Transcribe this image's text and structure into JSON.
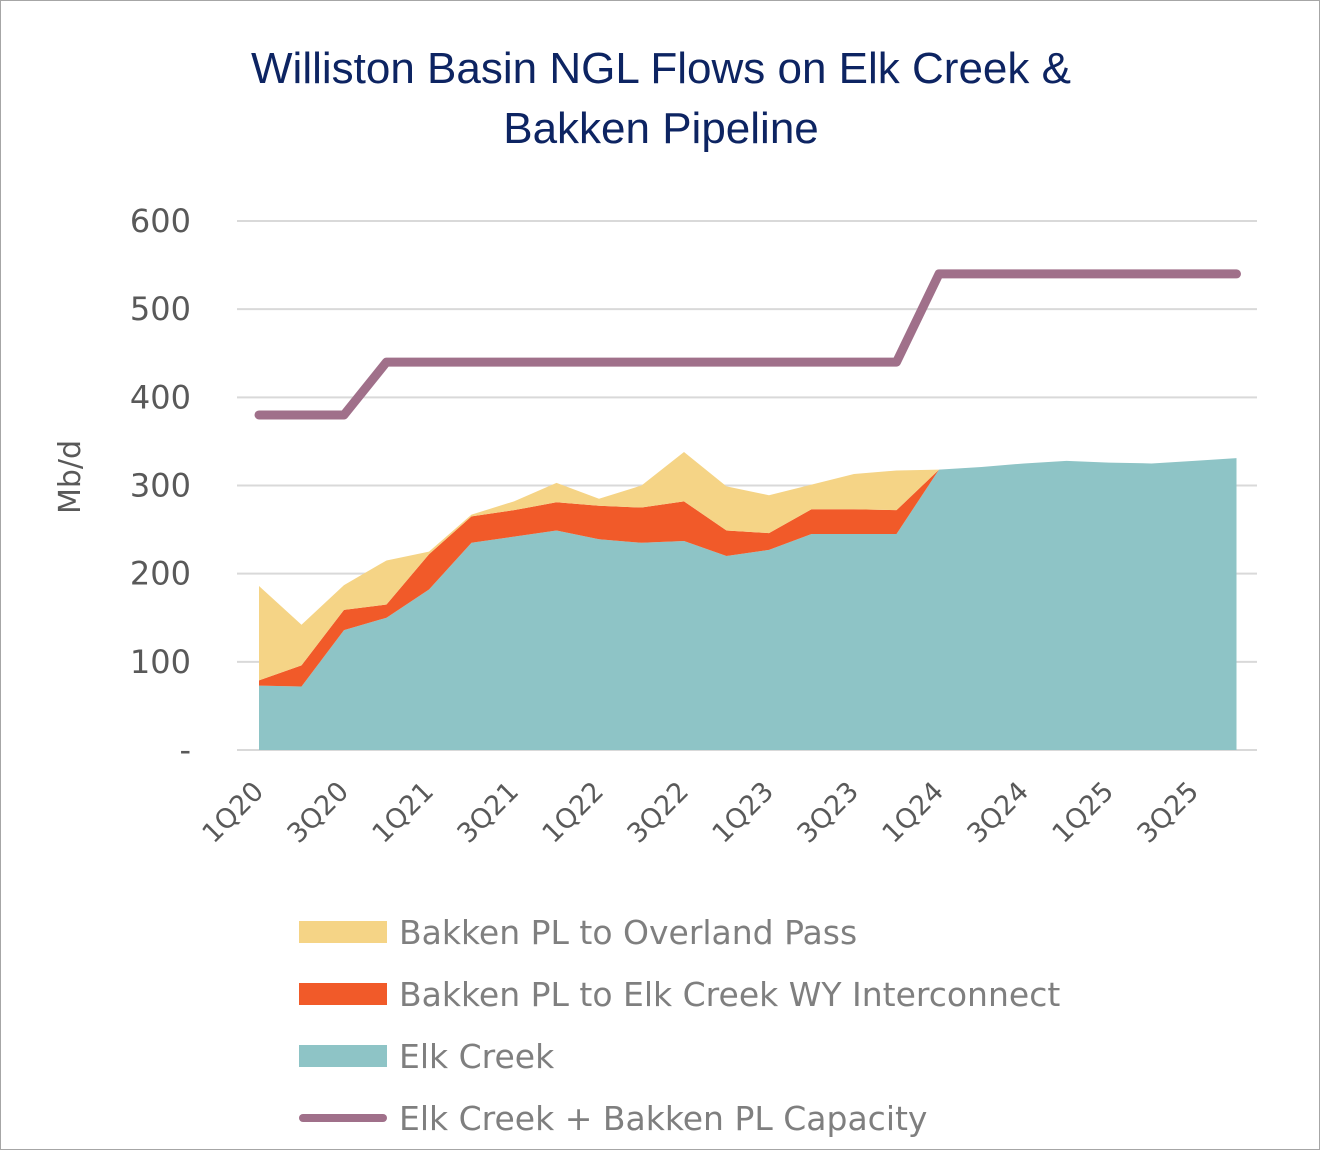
{
  "chart_data": {
    "type": "area",
    "title": [
      "Williston Basin NGL Flows on Elk Creek &",
      "Bakken Pipeline"
    ],
    "ylabel": "Mb/d",
    "xlabel": "",
    "ylim": [
      0,
      600
    ],
    "y_ticks": [
      "-",
      "100",
      "200",
      "300",
      "400",
      "500",
      "600"
    ],
    "y_tick_values": [
      0,
      100,
      200,
      300,
      400,
      500,
      600
    ],
    "grid": true,
    "legend_position": "bottom",
    "categories": [
      "1Q20",
      "2Q20",
      "3Q20",
      "4Q20",
      "1Q21",
      "2Q21",
      "3Q21",
      "4Q21",
      "1Q22",
      "2Q22",
      "3Q22",
      "4Q22",
      "1Q23",
      "2Q23",
      "3Q23",
      "4Q23",
      "1Q24",
      "2Q24",
      "3Q24",
      "4Q24",
      "1Q25",
      "2Q25",
      "3Q25",
      "4Q25"
    ],
    "x_tick_labels": [
      "1Q20",
      "3Q20",
      "1Q21",
      "3Q21",
      "1Q22",
      "3Q22",
      "1Q23",
      "3Q23",
      "1Q24",
      "3Q24",
      "1Q25",
      "3Q25"
    ],
    "x_tick_indices": [
      0,
      2,
      4,
      6,
      8,
      10,
      12,
      14,
      16,
      18,
      20,
      22
    ],
    "series": [
      {
        "name": "Elk Creek",
        "kind": "area",
        "color": "#8ec4c6",
        "values": [
          73,
          72,
          136,
          150,
          182,
          235,
          242,
          249,
          239,
          235,
          237,
          220,
          227,
          245,
          245,
          245,
          318,
          321,
          325,
          328,
          326,
          325,
          328,
          331
        ]
      },
      {
        "name": "Bakken PL to Elk Creek WY Interconnect",
        "kind": "area",
        "color": "#f15a29",
        "values": [
          6,
          24,
          23,
          15,
          40,
          30,
          30,
          32,
          38,
          40,
          45,
          29,
          19,
          28,
          28,
          27,
          0,
          0,
          0,
          0,
          0,
          0,
          0,
          0
        ]
      },
      {
        "name": "Bakken PL to Overland Pass",
        "kind": "area",
        "color": "#f5d486",
        "values": [
          107,
          46,
          28,
          50,
          3,
          2,
          10,
          22,
          8,
          25,
          56,
          50,
          43,
          28,
          40,
          45,
          0,
          0,
          0,
          0,
          0,
          0,
          0,
          0
        ]
      },
      {
        "name": "Elk Creek + Bakken PL Capacity",
        "kind": "line",
        "color": "#a0708a",
        "values": [
          380,
          380,
          380,
          440,
          440,
          440,
          440,
          440,
          440,
          440,
          440,
          440,
          440,
          440,
          440,
          440,
          540,
          540,
          540,
          540,
          540,
          540,
          540,
          540
        ]
      }
    ],
    "legend": [
      {
        "name": "Bakken PL to Overland Pass",
        "kind": "area",
        "color": "#f5d486"
      },
      {
        "name": "Bakken PL to Elk Creek WY Interconnect",
        "kind": "area",
        "color": "#f15a29"
      },
      {
        "name": "Elk Creek",
        "kind": "area",
        "color": "#8ec4c6"
      },
      {
        "name": "Elk Creek + Bakken PL Capacity",
        "kind": "line",
        "color": "#a0708a"
      }
    ]
  }
}
